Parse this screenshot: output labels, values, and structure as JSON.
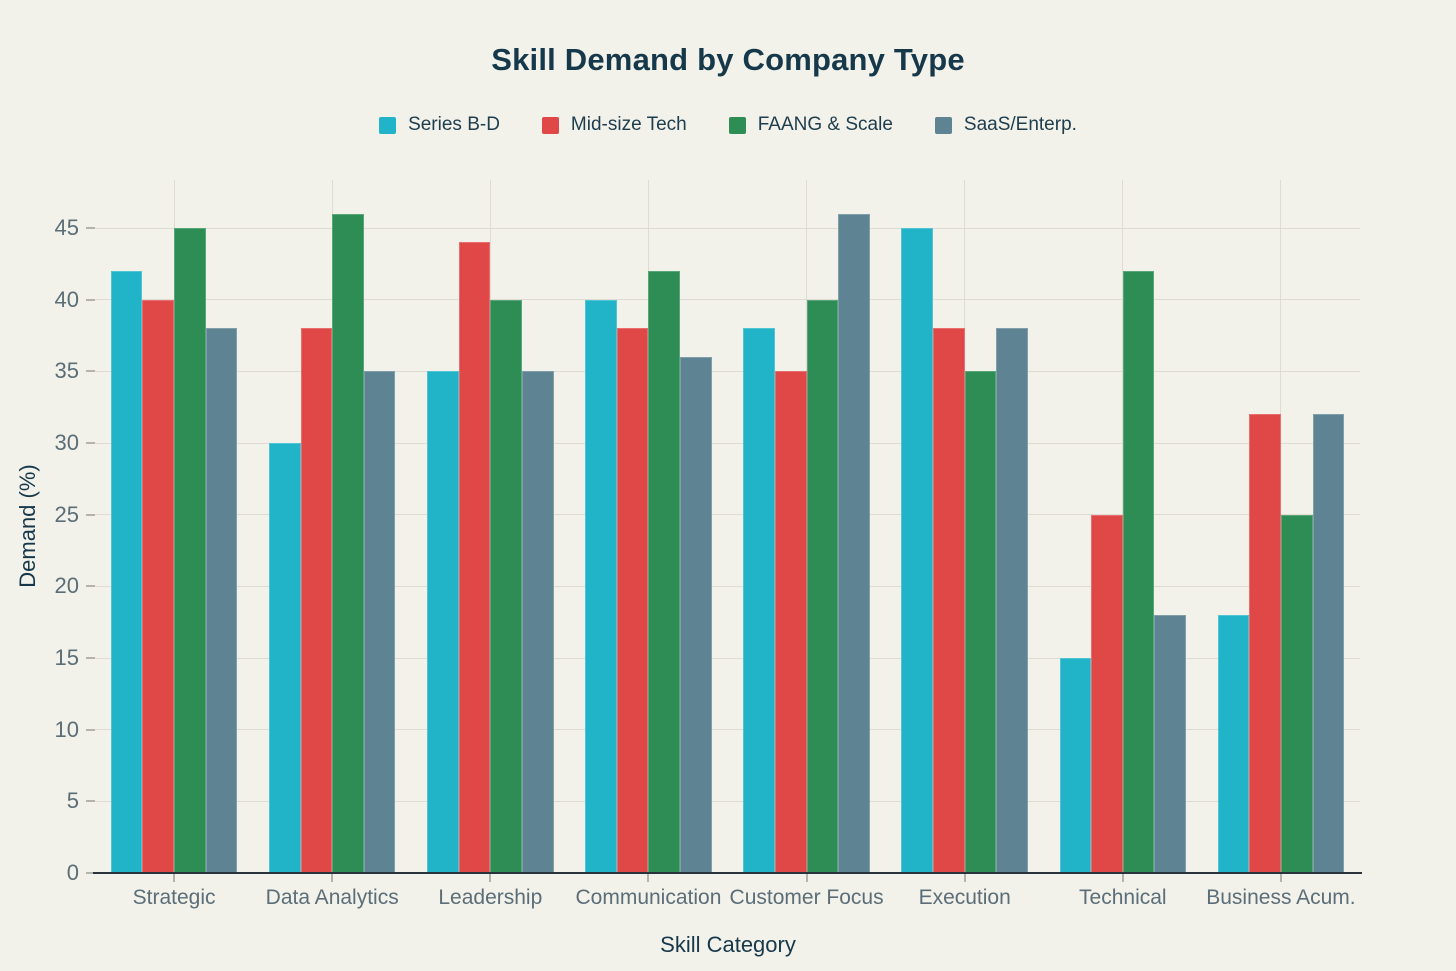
{
  "title": "Skill Demand by Company Type",
  "colors": {
    "background": "#f2f1ea",
    "gridline": "#dedcd2",
    "axis_line": "#28333a",
    "tick_mark": "#b3b3ab",
    "tick_text": "#5b6e78",
    "dark_text": "#15384a"
  },
  "chart_data": {
    "type": "bar",
    "title": "Skill Demand by Company Type",
    "xlabel": "Skill Category",
    "ylabel": "Demand (%)",
    "categories": [
      "Strategic",
      "Data Analytics",
      "Leadership",
      "Communication",
      "Customer Focus",
      "Execution",
      "Technical",
      "Business Acum."
    ],
    "series": [
      {
        "name": "Series B-D",
        "color": "#21b3c7",
        "values": [
          42,
          30,
          35,
          40,
          38,
          45,
          15,
          18
        ]
      },
      {
        "name": "Mid-size Tech",
        "color": "#e04747",
        "values": [
          40,
          38,
          44,
          38,
          35,
          38,
          25,
          32
        ]
      },
      {
        "name": "FAANG & Scale",
        "color": "#2e8c55",
        "values": [
          45,
          46,
          40,
          42,
          40,
          35,
          42,
          25
        ]
      },
      {
        "name": "SaaS/Enterp.",
        "color": "#5e8493",
        "values": [
          38,
          35,
          35,
          36,
          46,
          38,
          18,
          32
        ]
      }
    ],
    "yticks": [
      0,
      5,
      10,
      15,
      20,
      25,
      30,
      35,
      40,
      45
    ],
    "ylim": [
      0,
      48.35
    ],
    "grid": true,
    "legend_position": "top"
  }
}
